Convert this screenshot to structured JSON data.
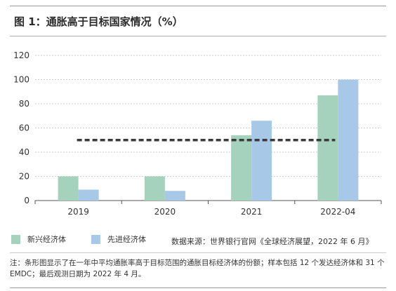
{
  "figure": {
    "title": "图 1：通胀高于目标国家情况（%）",
    "source": "数据来源：世界银行官网《全球经济展望，2022 年 6 月》",
    "note": "注：条形图显示了在一年中平均通胀率高于目标范围的通胀目标经济体的份额；样本包括 12 个发达经济体和 31 个 EMDC；最后观测日期为 2022 年 4 月。"
  },
  "colors": {
    "emerging": "#a4d2bc",
    "advanced": "#a8c8e8",
    "dashed_line": "#3a3a3a",
    "grid": "#cfcfcf",
    "axis": "#555555"
  },
  "chart_data": {
    "type": "bar",
    "title": "图 1：通胀高于目标国家情况（%）",
    "categories": [
      "2019",
      "2020",
      "2021",
      "2022-04"
    ],
    "series": [
      {
        "name": "新兴经济体",
        "values": [
          20,
          20,
          54,
          87
        ]
      },
      {
        "name": "先进经济体",
        "values": [
          9,
          8,
          66,
          100
        ]
      }
    ],
    "reference_line": {
      "style": "dashed",
      "value": 50
    },
    "ylim": [
      0,
      120
    ],
    "yticks": [
      0,
      20,
      40,
      60,
      80,
      100,
      120
    ],
    "grid": true,
    "legend_placement": "bottom"
  }
}
